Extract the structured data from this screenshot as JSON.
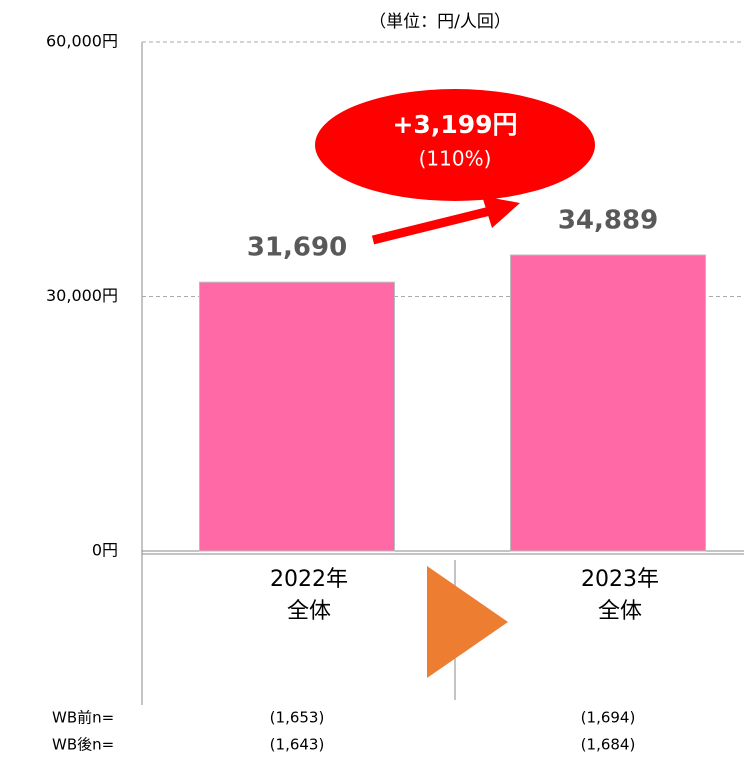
{
  "chart_data": {
    "type": "bar",
    "subtitle": "（単位：円/人回）",
    "categories": [
      [
        "2022年",
        "全体"
      ],
      [
        "2023年",
        "全体"
      ]
    ],
    "values": [
      31690,
      34889
    ],
    "value_labels": [
      "31,690",
      "34,889"
    ],
    "color": "#ff69a5",
    "ylim": [
      0,
      60000
    ],
    "yticks": [
      {
        "value": 0,
        "label": "0円"
      },
      {
        "value": 30000,
        "label": "30,000円"
      },
      {
        "value": 60000,
        "label": "60,000円"
      }
    ],
    "grid": true,
    "annotation": {
      "text": "+3,199円",
      "subtext": "(110%)"
    },
    "sample_sizes": [
      {
        "name": "WB前n=",
        "labels": [
          "(1,653)",
          "(1,694)"
        ]
      },
      {
        "name": "WB後n=",
        "labels": [
          "(1,643)",
          "(1,684)"
        ]
      }
    ]
  }
}
